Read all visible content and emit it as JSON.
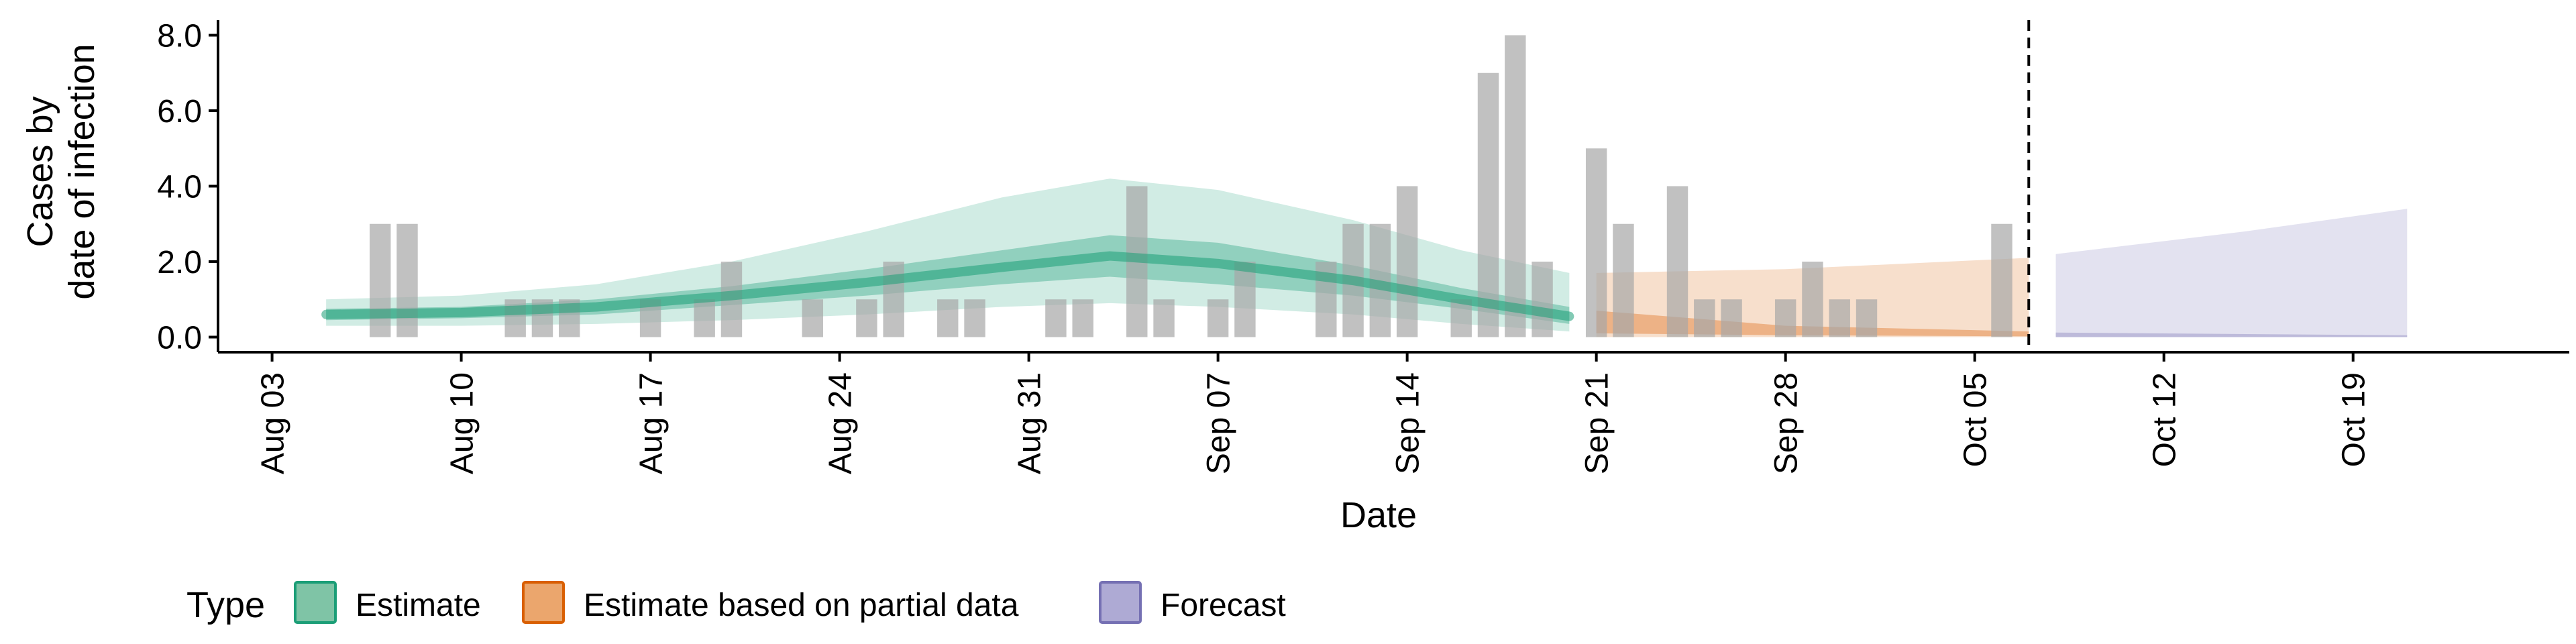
{
  "chart_data": {
    "type": "bar",
    "xlabel": "Date",
    "ylabel_lines": [
      "Cases by",
      "date of infection"
    ],
    "x_ticks": [
      "Aug 03",
      "Aug 10",
      "Aug 17",
      "Aug 24",
      "Aug 31",
      "Sep 07",
      "Sep 14",
      "Sep 21",
      "Sep 28",
      "Oct 05",
      "Oct 12",
      "Oct 19"
    ],
    "x_range": [
      "2020-08-01",
      "2020-10-27"
    ],
    "y_ticks": [
      "0.0",
      "2.0",
      "4.0",
      "6.0",
      "8.0"
    ],
    "ylim": [
      -0.4,
      8.4
    ],
    "grid": false,
    "forecast_start_line": "2020-10-07",
    "observed_cases": [
      {
        "date": "2020-08-07",
        "value": 3
      },
      {
        "date": "2020-08-08",
        "value": 3
      },
      {
        "date": "2020-08-12",
        "value": 1
      },
      {
        "date": "2020-08-13",
        "value": 1
      },
      {
        "date": "2020-08-14",
        "value": 1
      },
      {
        "date": "2020-08-17",
        "value": 1
      },
      {
        "date": "2020-08-19",
        "value": 1
      },
      {
        "date": "2020-08-20",
        "value": 2
      },
      {
        "date": "2020-08-23",
        "value": 1
      },
      {
        "date": "2020-08-25",
        "value": 1
      },
      {
        "date": "2020-08-26",
        "value": 2
      },
      {
        "date": "2020-08-28",
        "value": 1
      },
      {
        "date": "2020-08-29",
        "value": 1
      },
      {
        "date": "2020-09-01",
        "value": 1
      },
      {
        "date": "2020-09-02",
        "value": 1
      },
      {
        "date": "2020-09-04",
        "value": 4
      },
      {
        "date": "2020-09-05",
        "value": 1
      },
      {
        "date": "2020-09-07",
        "value": 1
      },
      {
        "date": "2020-09-08",
        "value": 2
      },
      {
        "date": "2020-09-11",
        "value": 2
      },
      {
        "date": "2020-09-12",
        "value": 3
      },
      {
        "date": "2020-09-13",
        "value": 3
      },
      {
        "date": "2020-09-14",
        "value": 4
      },
      {
        "date": "2020-09-16",
        "value": 1
      },
      {
        "date": "2020-09-17",
        "value": 7
      },
      {
        "date": "2020-09-18",
        "value": 8
      },
      {
        "date": "2020-09-19",
        "value": 2
      },
      {
        "date": "2020-09-21",
        "value": 5
      },
      {
        "date": "2020-09-22",
        "value": 3
      },
      {
        "date": "2020-09-24",
        "value": 4
      },
      {
        "date": "2020-09-25",
        "value": 1
      },
      {
        "date": "2020-09-26",
        "value": 1
      },
      {
        "date": "2020-09-28",
        "value": 1
      },
      {
        "date": "2020-09-29",
        "value": 2
      },
      {
        "date": "2020-09-30",
        "value": 1
      },
      {
        "date": "2020-10-01",
        "value": 1
      },
      {
        "date": "2020-10-06",
        "value": 3
      }
    ],
    "bands": [
      {
        "type": "Estimate",
        "color": "#1b9e77",
        "points": [
          {
            "date": "2020-08-05",
            "lower90": 0.3,
            "upper90": 1.0,
            "lower50": 0.45,
            "upper50": 0.75
          },
          {
            "date": "2020-08-10",
            "lower90": 0.3,
            "upper90": 1.1,
            "lower50": 0.5,
            "upper50": 0.8
          },
          {
            "date": "2020-08-15",
            "lower90": 0.35,
            "upper90": 1.4,
            "lower50": 0.6,
            "upper50": 1.0
          },
          {
            "date": "2020-08-20",
            "lower90": 0.45,
            "upper90": 2.0,
            "lower50": 0.85,
            "upper50": 1.35
          },
          {
            "date": "2020-08-25",
            "lower90": 0.6,
            "upper90": 2.8,
            "lower50": 1.1,
            "upper50": 1.8
          },
          {
            "date": "2020-08-30",
            "lower90": 0.8,
            "upper90": 3.7,
            "lower50": 1.4,
            "upper50": 2.3
          },
          {
            "date": "2020-09-03",
            "lower90": 0.9,
            "upper90": 4.2,
            "lower50": 1.6,
            "upper50": 2.7
          },
          {
            "date": "2020-09-07",
            "lower90": 0.8,
            "upper90": 3.9,
            "lower50": 1.4,
            "upper50": 2.5
          },
          {
            "date": "2020-09-12",
            "lower90": 0.6,
            "upper90": 3.1,
            "lower50": 1.1,
            "upper50": 1.9
          },
          {
            "date": "2020-09-16",
            "lower90": 0.35,
            "upper90": 2.3,
            "lower50": 0.75,
            "upper50": 1.3
          },
          {
            "date": "2020-09-20",
            "lower90": 0.15,
            "upper90": 1.7,
            "lower50": 0.35,
            "upper50": 0.8
          }
        ]
      },
      {
        "type": "Estimate based on partial data",
        "color": "#d95f02",
        "points": [
          {
            "date": "2020-09-21",
            "lower90": 0.0,
            "upper90": 1.7,
            "lower50": 0.1,
            "upper50": 0.7
          },
          {
            "date": "2020-09-28",
            "lower90": 0.0,
            "upper90": 1.8,
            "lower50": 0.05,
            "upper50": 0.3
          },
          {
            "date": "2020-10-07",
            "lower90": 0.0,
            "upper90": 2.1,
            "lower50": 0.02,
            "upper50": 0.15
          }
        ]
      },
      {
        "type": "Forecast",
        "color": "#7570b3",
        "points": [
          {
            "date": "2020-10-08",
            "lower90": 0.0,
            "upper90": 2.2,
            "lower50": 0.0,
            "upper50": 0.12
          },
          {
            "date": "2020-10-15",
            "lower90": 0.0,
            "upper90": 2.8,
            "lower50": 0.0,
            "upper50": 0.08
          },
          {
            "date": "2020-10-21",
            "lower90": 0.0,
            "upper90": 3.4,
            "lower50": 0.0,
            "upper50": 0.05
          }
        ]
      }
    ],
    "estimate_median": [
      {
        "date": "2020-08-05",
        "value": 0.6
      },
      {
        "date": "2020-08-10",
        "value": 0.65
      },
      {
        "date": "2020-08-15",
        "value": 0.8
      },
      {
        "date": "2020-08-20",
        "value": 1.1
      },
      {
        "date": "2020-08-25",
        "value": 1.45
      },
      {
        "date": "2020-08-30",
        "value": 1.85
      },
      {
        "date": "2020-09-03",
        "value": 2.15
      },
      {
        "date": "2020-09-07",
        "value": 1.95
      },
      {
        "date": "2020-09-12",
        "value": 1.5
      },
      {
        "date": "2020-09-16",
        "value": 1.0
      },
      {
        "date": "2020-09-20",
        "value": 0.55
      }
    ],
    "legend": {
      "title": "Type",
      "items": [
        {
          "label": "Estimate",
          "fill": "#7fc4a6",
          "stroke": "#1b9e77"
        },
        {
          "label": "Estimate based on partial data",
          "fill": "#eba66d",
          "stroke": "#d95f02"
        },
        {
          "label": "Forecast",
          "fill": "#aeaad4",
          "stroke": "#7570b3"
        }
      ]
    }
  }
}
